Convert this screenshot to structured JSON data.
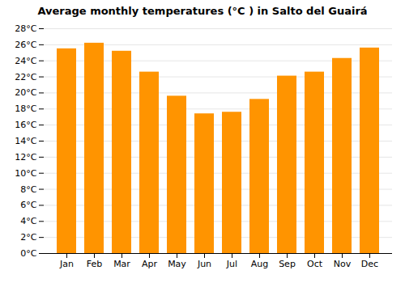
{
  "chart_data": {
    "type": "bar",
    "title": "Average monthly temperatures (°C ) in Salto del Guairá",
    "categories": [
      "Jan",
      "Feb",
      "Mar",
      "Apr",
      "May",
      "Jun",
      "Jul",
      "Aug",
      "Sep",
      "Oct",
      "Nov",
      "Dec"
    ],
    "values": [
      25.5,
      26.2,
      25.2,
      22.6,
      19.6,
      17.4,
      17.6,
      19.2,
      22.1,
      22.6,
      24.3,
      25.6
    ],
    "color": "#ff9400",
    "ylim": [
      0,
      28
    ],
    "yticks": [
      {
        "value": 0,
        "label": "0°C"
      },
      {
        "value": 2,
        "label": "2°C"
      },
      {
        "value": 4,
        "label": "4°C"
      },
      {
        "value": 6,
        "label": "6°C"
      },
      {
        "value": 8,
        "label": "8°C"
      },
      {
        "value": 10,
        "label": "10°C"
      },
      {
        "value": 12,
        "label": "12°C"
      },
      {
        "value": 14,
        "label": "14°C"
      },
      {
        "value": 16,
        "label": "16°C"
      },
      {
        "value": 18,
        "label": "18°C"
      },
      {
        "value": 20,
        "label": "20°C"
      },
      {
        "value": 22,
        "label": "22°C"
      },
      {
        "value": 24,
        "label": "24°C"
      },
      {
        "value": 26,
        "label": "26°C"
      },
      {
        "value": 28,
        "label": "28°C"
      }
    ],
    "grid": true
  }
}
